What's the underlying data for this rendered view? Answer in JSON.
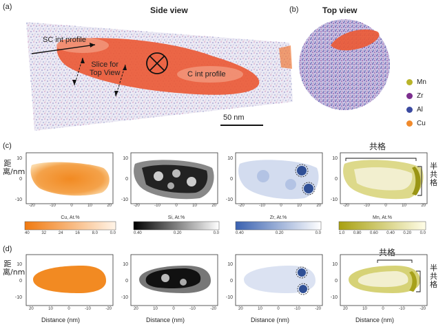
{
  "panel_labels": {
    "a": "(a)",
    "b": "(b)",
    "c": "(c)",
    "d": "(d)"
  },
  "titles": {
    "side_view": "Side view",
    "top_view": "Top view"
  },
  "annotations": {
    "sc_int_profile": "SC int profile",
    "slice_line1": "Slice for",
    "slice_line2": "Top View",
    "c_int_profile": "C int profile",
    "scale_bar": "50 nm"
  },
  "legend": [
    {
      "label": "Mn",
      "color": "#b9b42a"
    },
    {
      "label": "Zr",
      "color": "#7c2f8e"
    },
    {
      "label": "Al",
      "color": "#3b4aa0"
    },
    {
      "label": "Cu",
      "color": "#f08a2c"
    }
  ],
  "axes": {
    "y_label": "距离/nm",
    "x_label": "Distance (nm)",
    "c_x_ticks": [
      "-20",
      "-10",
      "0",
      "10",
      "20"
    ],
    "d_x_ticks": [
      "20",
      "10",
      "0",
      "-10",
      "-20"
    ],
    "y_ticks": [
      "10",
      "0",
      "-10"
    ]
  },
  "colorbars": [
    {
      "label": "Cu, At.%",
      "ticks": [
        "40",
        "32",
        "24",
        "16",
        "8.0",
        "0.0"
      ]
    },
    {
      "label": "Si, At.%",
      "ticks": [
        "0.40",
        "0.20",
        "0.0"
      ]
    },
    {
      "label": "Zr, At.%",
      "ticks": [
        "0.40",
        "0.20",
        "0.0"
      ]
    },
    {
      "label": "Mn, At.%",
      "ticks": [
        "1.0",
        "0.80",
        "0.60",
        "0.40",
        "0.20",
        "0.0"
      ]
    }
  ],
  "interface_labels": {
    "coherent": "共格",
    "semicoherent": "半共格"
  }
}
